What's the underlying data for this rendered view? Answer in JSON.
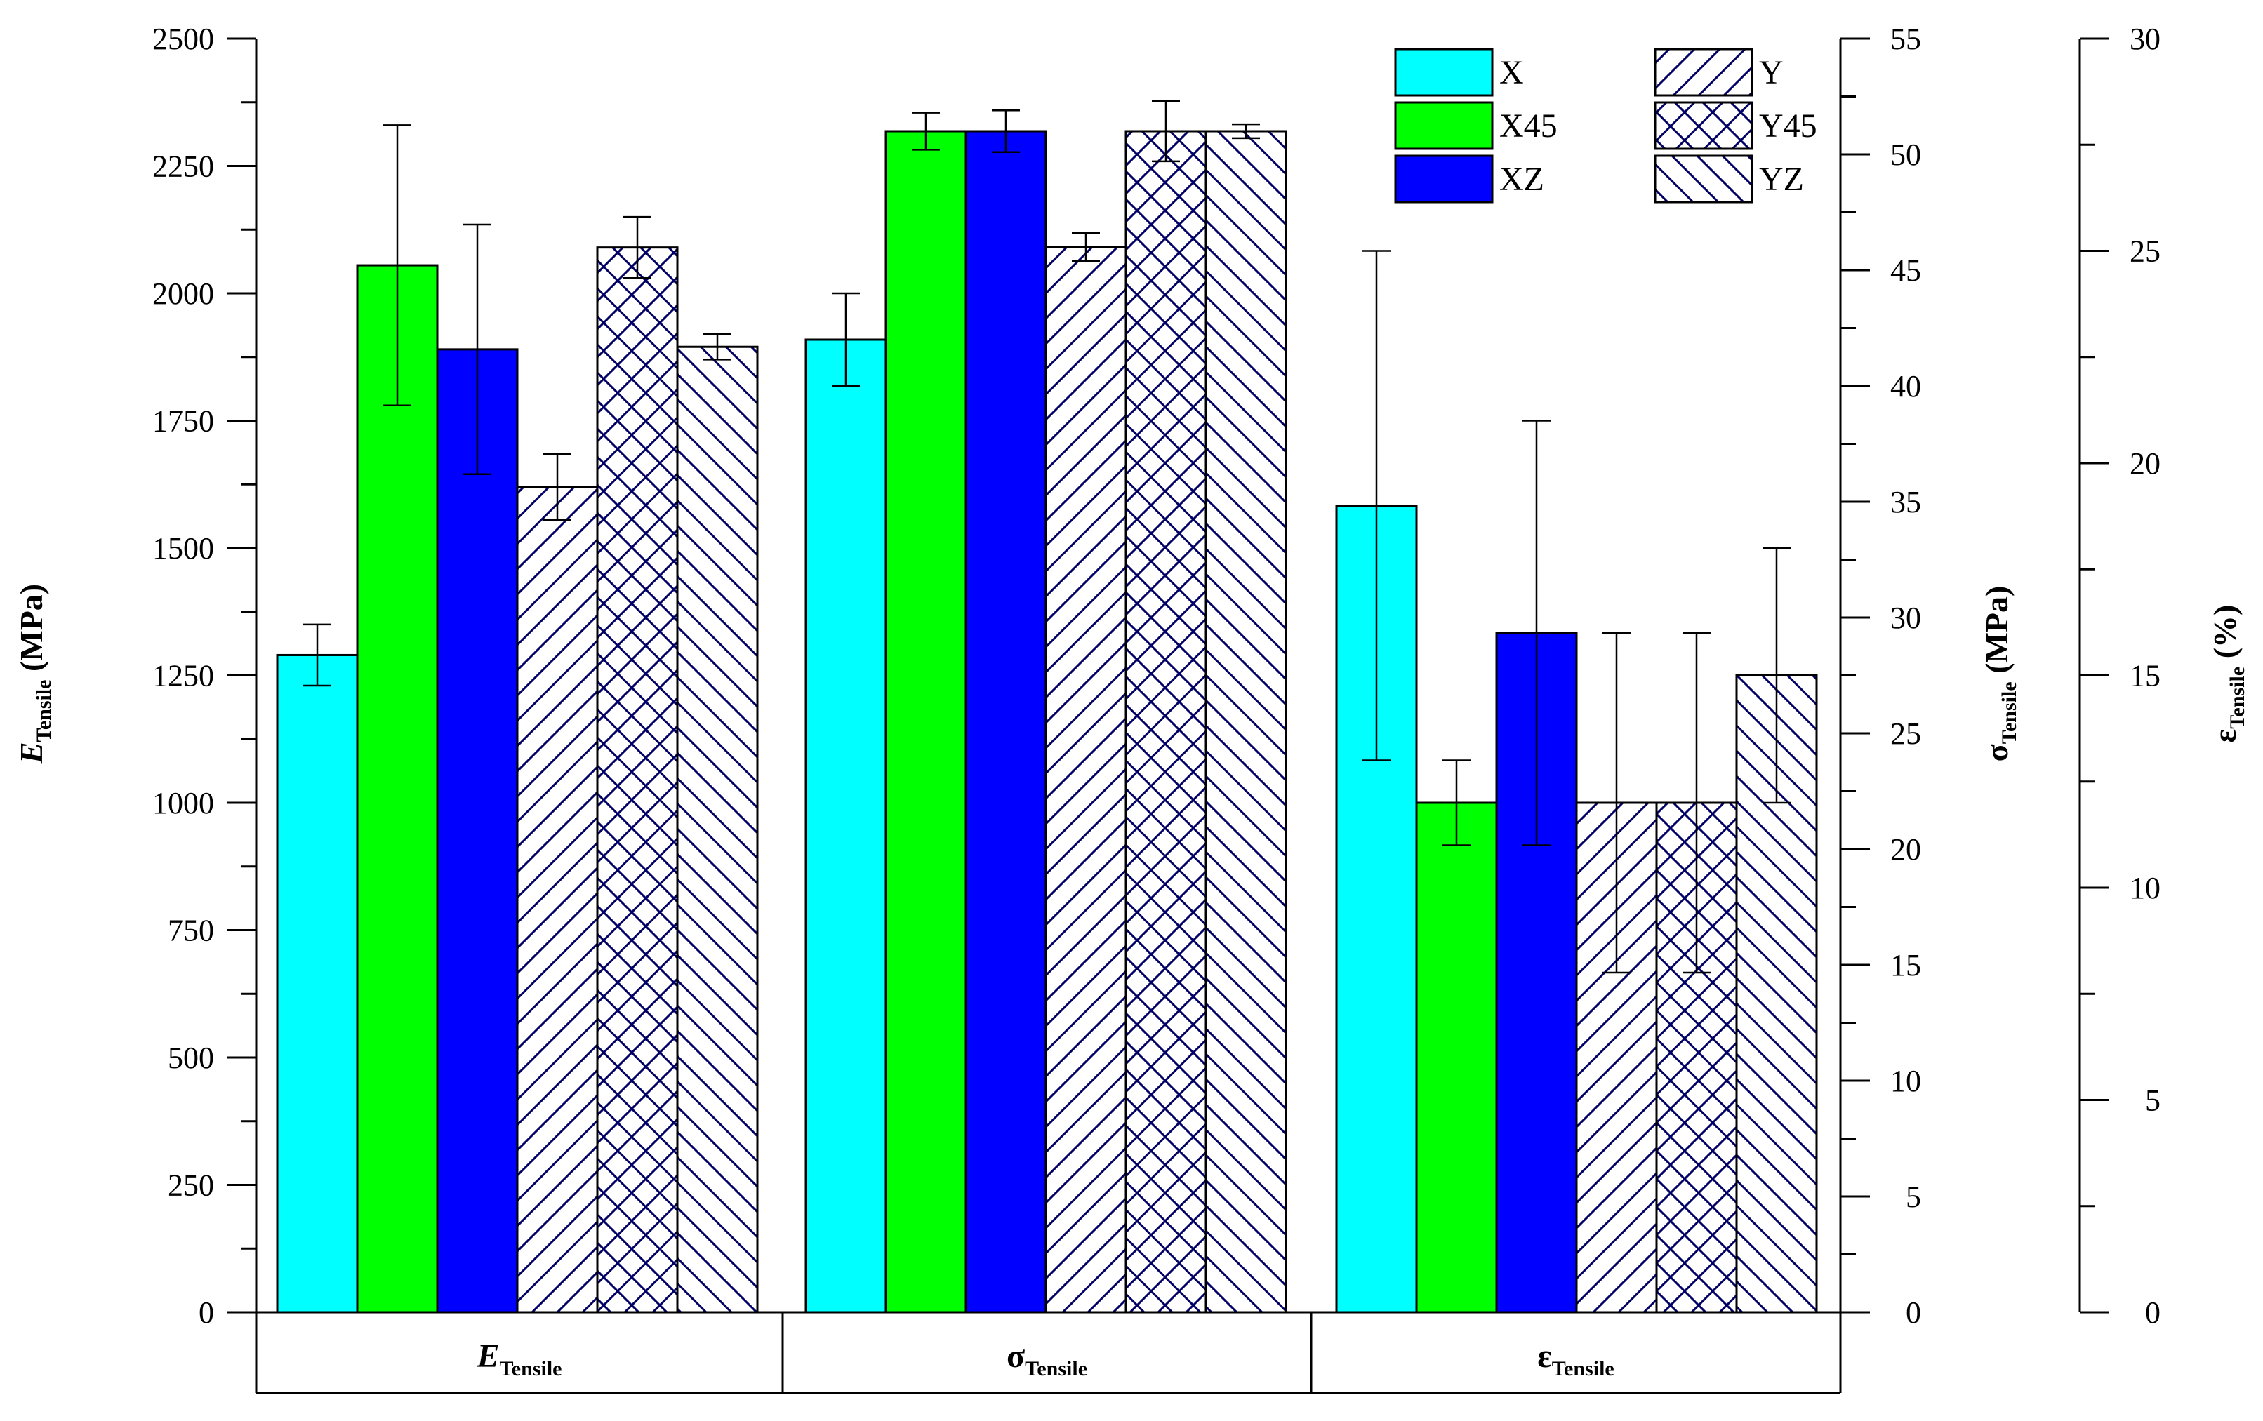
{
  "chart_data": {
    "type": "bar",
    "categories": [
      {
        "main": "E",
        "sub": "Tensile",
        "italic": true,
        "axis": "left"
      },
      {
        "main": "σ",
        "sub": "Tensile",
        "italic": false,
        "axis": "right1"
      },
      {
        "main": "ε",
        "sub": "Tensile",
        "italic": false,
        "axis": "right2"
      }
    ],
    "series": [
      {
        "name": "X",
        "fill": "#00ffff",
        "pattern": "solid",
        "values": [
          1290,
          42.0,
          19.0
        ],
        "errors": [
          60,
          2.0,
          6.0
        ]
      },
      {
        "name": "X45",
        "fill": "#00ff00",
        "pattern": "solid",
        "values": [
          2055,
          51.0,
          12.0
        ],
        "errors": [
          275,
          0.8,
          1.0
        ]
      },
      {
        "name": "XZ",
        "fill": "#0000ff",
        "pattern": "solid",
        "values": [
          1890,
          51.0,
          16.0
        ],
        "errors": [
          245,
          0.9,
          5.0
        ]
      },
      {
        "name": "Y",
        "fill": "#ffffff",
        "pattern": "diag-up",
        "values": [
          1620,
          46.0,
          12.0
        ],
        "errors": [
          65,
          0.6,
          4.0
        ]
      },
      {
        "name": "Y45",
        "fill": "#ffffff",
        "pattern": "cross",
        "values": [
          2090,
          51.0,
          12.0
        ],
        "errors": [
          60,
          1.3,
          4.0
        ]
      },
      {
        "name": "YZ",
        "fill": "#ffffff",
        "pattern": "diag-down",
        "values": [
          1895,
          51.0,
          15.0
        ],
        "errors": [
          25,
          0.3,
          3.0
        ]
      }
    ],
    "axes": {
      "left": {
        "label_main": "E",
        "label_sub": "Tensile",
        "label_unit": " (MPa)",
        "ylim": [
          0,
          2500
        ],
        "ticks": [
          0,
          250,
          500,
          750,
          1000,
          1250,
          1500,
          1750,
          2000,
          2250,
          2500
        ]
      },
      "right1": {
        "label_main": "σ",
        "label_sub": "Tensile",
        "label_unit": " (MPa)",
        "ylim": [
          0,
          55
        ],
        "ticks": [
          0,
          5,
          10,
          15,
          20,
          25,
          30,
          35,
          40,
          45,
          50,
          55
        ]
      },
      "right2": {
        "label_main": "ε",
        "label_sub": "Tensile",
        "label_unit": " (%)",
        "ylim": [
          0,
          30
        ],
        "ticks": [
          0,
          5,
          10,
          15,
          20,
          25,
          30
        ]
      }
    },
    "legend_position": "top-right",
    "colors": {
      "pattern_stroke": "#000066",
      "axis": "#000000"
    }
  }
}
